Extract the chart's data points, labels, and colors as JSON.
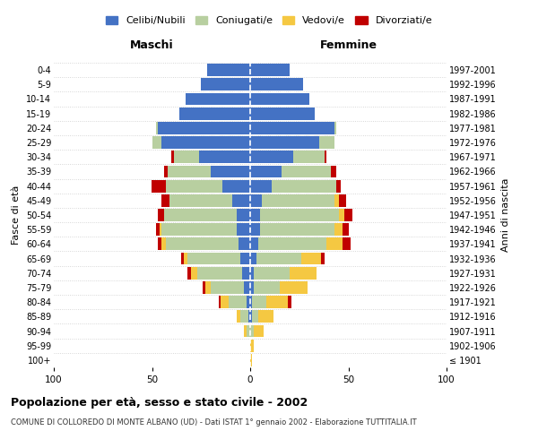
{
  "age_groups": [
    "100+",
    "95-99",
    "90-94",
    "85-89",
    "80-84",
    "75-79",
    "70-74",
    "65-69",
    "60-64",
    "55-59",
    "50-54",
    "45-49",
    "40-44",
    "35-39",
    "30-34",
    "25-29",
    "20-24",
    "15-19",
    "10-14",
    "5-9",
    "0-4"
  ],
  "birth_years": [
    "≤ 1901",
    "1902-1906",
    "1907-1911",
    "1912-1916",
    "1917-1921",
    "1922-1926",
    "1927-1931",
    "1932-1936",
    "1937-1941",
    "1942-1946",
    "1947-1951",
    "1952-1956",
    "1957-1961",
    "1962-1966",
    "1967-1971",
    "1972-1976",
    "1977-1981",
    "1982-1986",
    "1987-1991",
    "1992-1996",
    "1997-2001"
  ],
  "males": {
    "celibi": [
      0,
      0,
      0,
      1,
      2,
      3,
      4,
      5,
      6,
      7,
      7,
      9,
      14,
      20,
      26,
      45,
      47,
      36,
      33,
      25,
      22
    ],
    "coniugati": [
      0,
      0,
      2,
      4,
      9,
      17,
      23,
      27,
      37,
      38,
      37,
      32,
      29,
      22,
      13,
      5,
      1,
      0,
      0,
      0,
      0
    ],
    "vedovi": [
      0,
      0,
      1,
      2,
      4,
      3,
      3,
      2,
      2,
      1,
      0,
      0,
      0,
      0,
      0,
      0,
      0,
      0,
      0,
      0,
      0
    ],
    "divorziati": [
      0,
      0,
      0,
      0,
      1,
      1,
      2,
      1,
      2,
      2,
      3,
      4,
      7,
      2,
      1,
      0,
      0,
      0,
      0,
      0,
      0
    ]
  },
  "females": {
    "nubili": [
      0,
      0,
      0,
      1,
      1,
      2,
      2,
      3,
      4,
      5,
      5,
      6,
      11,
      16,
      22,
      35,
      43,
      33,
      30,
      27,
      20
    ],
    "coniugate": [
      0,
      0,
      2,
      3,
      7,
      13,
      18,
      23,
      35,
      38,
      40,
      37,
      33,
      25,
      16,
      8,
      1,
      0,
      0,
      0,
      0
    ],
    "vedove": [
      1,
      2,
      5,
      8,
      11,
      14,
      14,
      10,
      8,
      4,
      3,
      2,
      0,
      0,
      0,
      0,
      0,
      0,
      0,
      0,
      0
    ],
    "divorziate": [
      0,
      0,
      0,
      0,
      2,
      0,
      0,
      2,
      4,
      3,
      4,
      4,
      2,
      3,
      1,
      0,
      0,
      0,
      0,
      0,
      0
    ]
  },
  "colors": {
    "celibi_nubili": "#4472c4",
    "coniugati_e": "#b8cfa0",
    "vedovi_e": "#f5c842",
    "divorziati_e": "#c00000"
  },
  "xlim": 100,
  "title": "Popolazione per età, sesso e stato civile - 2002",
  "subtitle": "COMUNE DI COLLOREDO DI MONTE ALBANO (UD) - Dati ISTAT 1° gennaio 2002 - Elaborazione TUTTITALIA.IT",
  "xlabel_left": "Maschi",
  "xlabel_right": "Femmine",
  "ylabel_left": "Fasce di età",
  "ylabel_right": "Anni di nascita",
  "legend_labels": [
    "Celibi/Nubili",
    "Coniugati/e",
    "Vedovi/e",
    "Divorziati/e"
  ],
  "bg_color": "#ffffff",
  "grid_color": "#cccccc"
}
